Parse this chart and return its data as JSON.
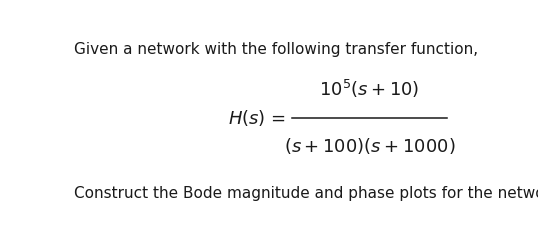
{
  "line1": "Given a network with the following transfer function,",
  "line1_fontsize": 11.0,
  "hs_fontsize": 13,
  "num_fontsize": 13,
  "den_fontsize": 13,
  "line2": "Construct the Bode magnitude and phase plots for the network.",
  "line2_fontsize": 11.0,
  "background_color": "#ffffff",
  "text_color": "#1a1a1a"
}
